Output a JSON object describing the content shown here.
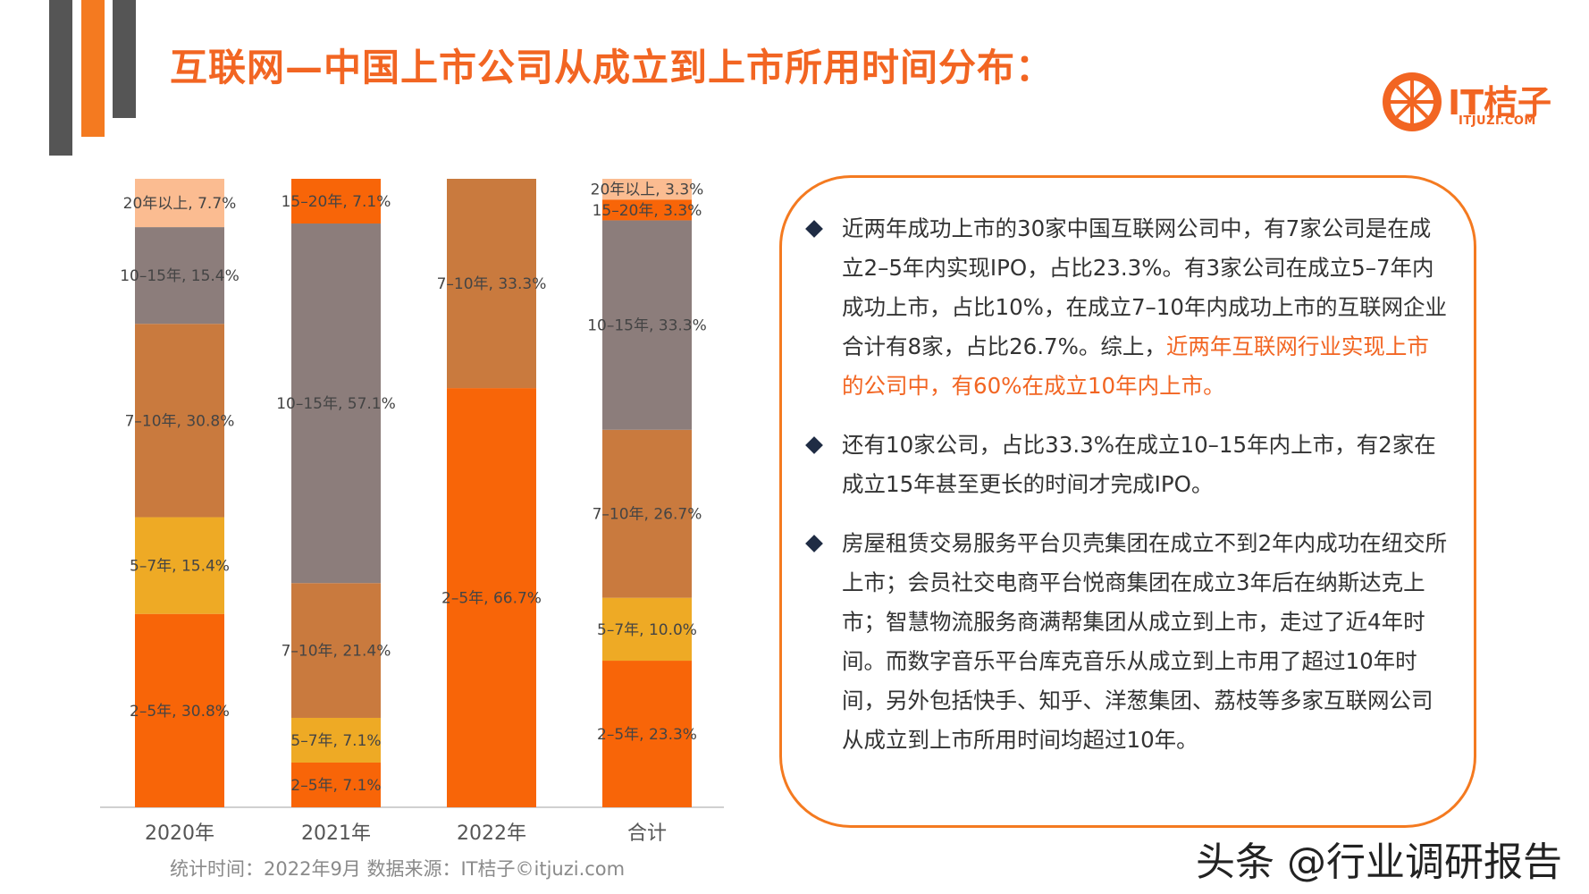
{
  "title": "互联网—中国上市公司从成立到上市所用时间分布：",
  "logo": {
    "name": "IT桔子",
    "sub": "ITJUZI.COM"
  },
  "source_note": "统计时间：2022年9月  数据来源：IT桔子©itjuzi.com",
  "watermark": "头条 @行业调研报告",
  "colors": {
    "2-5": "#f86508",
    "5-7": "#eeaa25",
    "7-10": "#c97a3e",
    "10-15": "#8c7d7b",
    "15-20": "#f86508",
    "20+": "#fbbc91",
    "accent": "#f26522"
  },
  "chart_data": {
    "type": "bar",
    "stacked": true,
    "normalized": true,
    "categories": [
      "2020年",
      "2021年",
      "2022年",
      "合计"
    ],
    "series": [
      {
        "key": "2-5",
        "values": [
          30.8,
          7.1,
          66.7,
          23.3
        ],
        "labels": [
          "2–5年, 30.8%",
          "2–5年, 7.1%",
          "2–5年, 66.7%",
          "2–5年, 23.3%"
        ]
      },
      {
        "key": "5-7",
        "values": [
          15.4,
          7.1,
          0,
          10.0
        ],
        "labels": [
          "5–7年, 15.4%",
          "5–7年, 7.1%",
          "",
          "5–7年, 10.0%"
        ]
      },
      {
        "key": "7-10",
        "values": [
          30.8,
          21.4,
          33.3,
          26.7
        ],
        "labels": [
          "7–10年, 30.8%",
          "7–10年, 21.4%",
          "7–10年, 33.3%",
          "7–10年, 26.7%"
        ]
      },
      {
        "key": "10-15",
        "values": [
          15.4,
          57.1,
          0,
          33.3
        ],
        "labels": [
          "10–15年, 15.4%",
          "10–15年, 57.1%",
          "",
          "10–15年, 33.3%"
        ]
      },
      {
        "key": "15-20",
        "values": [
          0,
          7.1,
          0,
          3.3
        ],
        "labels": [
          "",
          "15–20年, 7.1%",
          "",
          "15–20年, 3.3%"
        ]
      },
      {
        "key": "20+",
        "values": [
          7.7,
          0,
          0,
          3.3
        ],
        "labels": [
          "20年以上, 7.7%",
          "",
          "",
          "20年以上, 3.3%"
        ]
      }
    ],
    "ylim": [
      0,
      100
    ],
    "grid": false,
    "legend": "none"
  },
  "bullets": [
    {
      "text": "近两年成功上市的30家中国互联网公司中，有7家公司是在成立2–5年内实现IPO，占比23.3%。有3家公司在成立5–7年内成功上市，占比10%，在成立7–10年内成功上市的互联网企业合计有8家，占比26.7%。综上，",
      "highlight": "近两年互联网行业实现上市的公司中，有60%在成立10年内上市。"
    },
    {
      "text": "还有10家公司，占比33.3%在成立10–15年内上市，有2家在成立15年甚至更长的时间才完成IPO。"
    },
    {
      "text": "房屋租赁交易服务平台贝壳集团在成立不到2年内成功在纽交所上市；会员社交电商平台悦商集团在成立3年后在纳斯达克上市；智慧物流服务商满帮集团从成立到上市，走过了近4年时间。而数字音乐平台库克音乐从成立到上市用了超过10年时间，另外包括快手、知乎、洋葱集团、荔枝等多家互联网公司从成立到上市所用时间均超过10年。"
    }
  ]
}
